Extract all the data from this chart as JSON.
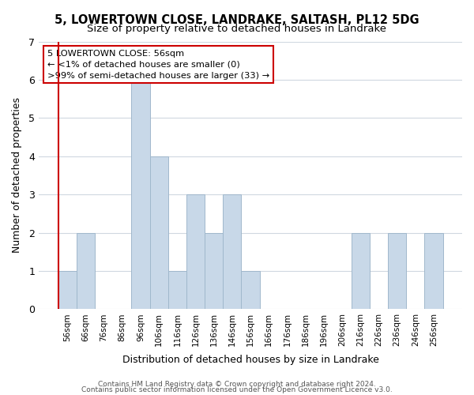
{
  "title": "5, LOWERTOWN CLOSE, LANDRAKE, SALTASH, PL12 5DG",
  "subtitle": "Size of property relative to detached houses in Landrake",
  "xlabel": "Distribution of detached houses by size in Landrake",
  "ylabel": "Number of detached properties",
  "bar_color": "#c8d8e8",
  "bar_edge_color": "#a0b8cc",
  "bins": [
    "56sqm",
    "66sqm",
    "76sqm",
    "86sqm",
    "96sqm",
    "106sqm",
    "116sqm",
    "126sqm",
    "136sqm",
    "146sqm",
    "156sqm",
    "166sqm",
    "176sqm",
    "186sqm",
    "196sqm",
    "206sqm",
    "216sqm",
    "226sqm",
    "236sqm",
    "246sqm",
    "256sqm"
  ],
  "values": [
    1,
    2,
    0,
    0,
    6,
    4,
    1,
    3,
    2,
    3,
    1,
    0,
    0,
    0,
    0,
    0,
    2,
    0,
    2,
    0,
    2
  ],
  "ylim": [
    0,
    7
  ],
  "yticks": [
    0,
    1,
    2,
    3,
    4,
    5,
    6,
    7
  ],
  "annotation_title": "5 LOWERTOWN CLOSE: 56sqm",
  "annotation_line1": "← <1% of detached houses are smaller (0)",
  "annotation_line2": ">99% of semi-detached houses are larger (33) →",
  "annotation_box_color": "#ffffff",
  "annotation_box_edge": "#cc0000",
  "footer1": "Contains HM Land Registry data © Crown copyright and database right 2024.",
  "footer2": "Contains public sector information licensed under the Open Government Licence v3.0.",
  "background_color": "#ffffff",
  "grid_color": "#d0d8e0"
}
